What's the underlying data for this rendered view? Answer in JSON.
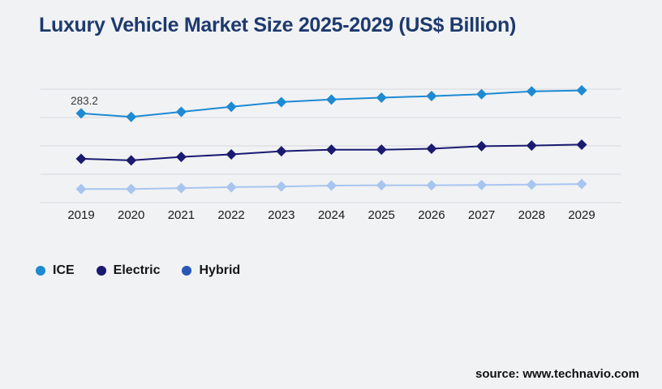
{
  "page": {
    "title": "Luxury Vehicle Market Size 2025-2029 (US$ Billion)",
    "source": "source: www.technavio.com",
    "background_color": "#f1f2f4",
    "title_color": "#1e3a6d",
    "gridline_color": "#d7d8dc"
  },
  "chart_data": {
    "type": "line",
    "title": "Luxury Vehicle Market Size 2025-2029 (US$ Billion)",
    "xlabel": "",
    "ylabel": "",
    "x": [
      2019,
      2020,
      2021,
      2022,
      2023,
      2024,
      2025,
      2026,
      2027,
      2028,
      2029
    ],
    "series": [
      {
        "name": "ICE",
        "color": "#1d8ad2",
        "legend_color": "#1d8ad2",
        "values": [
          283.2,
          272,
          288,
          304,
          319,
          327,
          333,
          338,
          344,
          353,
          356
        ]
      },
      {
        "name": "Electric",
        "color": "#1a1a70",
        "legend_color": "#1a1a70",
        "values": [
          139,
          134,
          145,
          153,
          163,
          168,
          168,
          171,
          179,
          181,
          184
        ]
      },
      {
        "name": "Hybrid",
        "color": "#a8c5f0",
        "legend_color": "#2857b8",
        "values": [
          43,
          43,
          46,
          49,
          51,
          54,
          55,
          55,
          56,
          57,
          59
        ]
      }
    ],
    "annotations": [
      {
        "series": "ICE",
        "x": 2019,
        "label": "283.2"
      }
    ],
    "ylim": [
      0,
      360
    ],
    "gridlines": [
      0,
      90,
      180,
      270,
      360
    ],
    "grid": true,
    "y_axis_labels_visible": false,
    "marker": "diamond",
    "legend_position": "bottom-left"
  }
}
